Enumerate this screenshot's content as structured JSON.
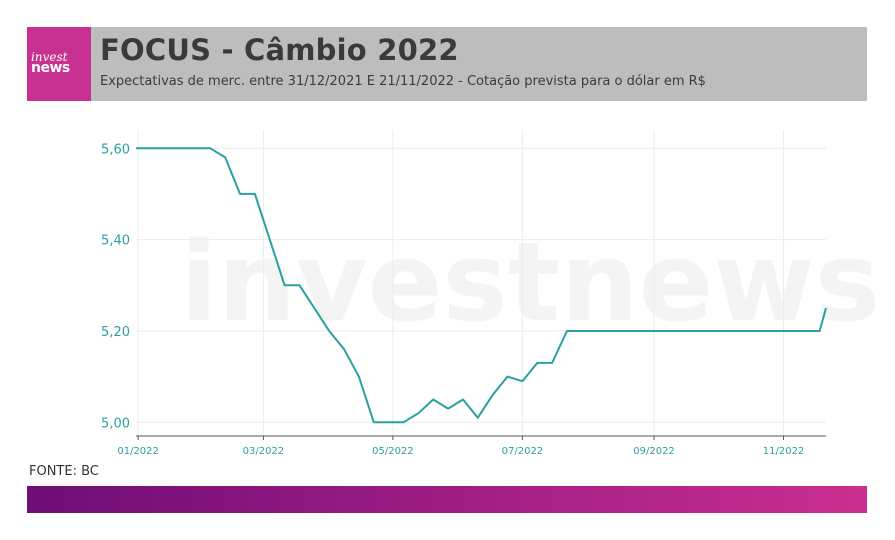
{
  "header": {
    "logo_line1": "invest",
    "logo_line2": "news",
    "title": "FOCUS - Câmbio 2022",
    "subtitle": "Expectativas de merc. entre 31/12/2021 E 21/11/2022 - Cotação prevista para o dólar em R$"
  },
  "source": "FONTE: BC",
  "watermark": "investnews",
  "colors": {
    "line": "#2aa0a3",
    "axis_text": "#2aa0a3",
    "header_bg": "#bdbdbd",
    "logo_bg": "#c7318f",
    "footer_start": "#6d0d75",
    "footer_end": "#cb2e8f"
  },
  "chart_data": {
    "type": "line",
    "title": "FOCUS - Câmbio 2022",
    "x": [
      "2021-12-31",
      "2022-01-07",
      "2022-01-14",
      "2022-01-21",
      "2022-01-28",
      "2022-02-04",
      "2022-02-11",
      "2022-02-18",
      "2022-02-25",
      "2022-03-04",
      "2022-03-11",
      "2022-03-18",
      "2022-03-25",
      "2022-04-01",
      "2022-04-08",
      "2022-04-15",
      "2022-04-22",
      "2022-04-29",
      "2022-05-06",
      "2022-05-13",
      "2022-05-20",
      "2022-05-27",
      "2022-06-03",
      "2022-06-10",
      "2022-06-17",
      "2022-06-24",
      "2022-07-01",
      "2022-07-08",
      "2022-07-15",
      "2022-07-22",
      "2022-07-29",
      "2022-08-05",
      "2022-08-12",
      "2022-08-19",
      "2022-08-26",
      "2022-09-02",
      "2022-09-09",
      "2022-09-16",
      "2022-09-23",
      "2022-09-30",
      "2022-10-07",
      "2022-10-14",
      "2022-10-21",
      "2022-10-28",
      "2022-11-04",
      "2022-11-11",
      "2022-11-18",
      "2022-11-21"
    ],
    "series": [
      {
        "values": [
          5.6,
          5.6,
          5.6,
          5.6,
          5.6,
          5.6,
          5.58,
          5.5,
          5.5,
          5.4,
          5.3,
          5.3,
          5.25,
          5.2,
          5.16,
          5.1,
          5.0,
          5.0,
          5.0,
          5.02,
          5.05,
          5.03,
          5.05,
          5.01,
          5.06,
          5.1,
          5.09,
          5.13,
          5.13,
          5.2,
          5.2,
          5.2,
          5.2,
          5.2,
          5.2,
          5.2,
          5.2,
          5.2,
          5.2,
          5.2,
          5.2,
          5.2,
          5.2,
          5.2,
          5.2,
          5.2,
          5.2,
          5.25
        ]
      }
    ],
    "x_ticks": [
      "01/2022",
      "03/2022",
      "05/2022",
      "07/2022",
      "09/2022",
      "11/2022"
    ],
    "x_tick_dates": [
      "2022-01-01",
      "2022-03-01",
      "2022-05-01",
      "2022-07-01",
      "2022-09-01",
      "2022-11-01"
    ],
    "xlim": [
      "2021-12-31",
      "2022-11-21"
    ],
    "y_ticks": [
      5.0,
      5.2,
      5.4,
      5.6
    ],
    "y_tick_labels": [
      "5,00",
      "5,20",
      "5,40",
      "5,60"
    ],
    "ylim": [
      4.97,
      5.64
    ],
    "grid": "vertical and horizontal light gridlines",
    "legend": "none"
  }
}
